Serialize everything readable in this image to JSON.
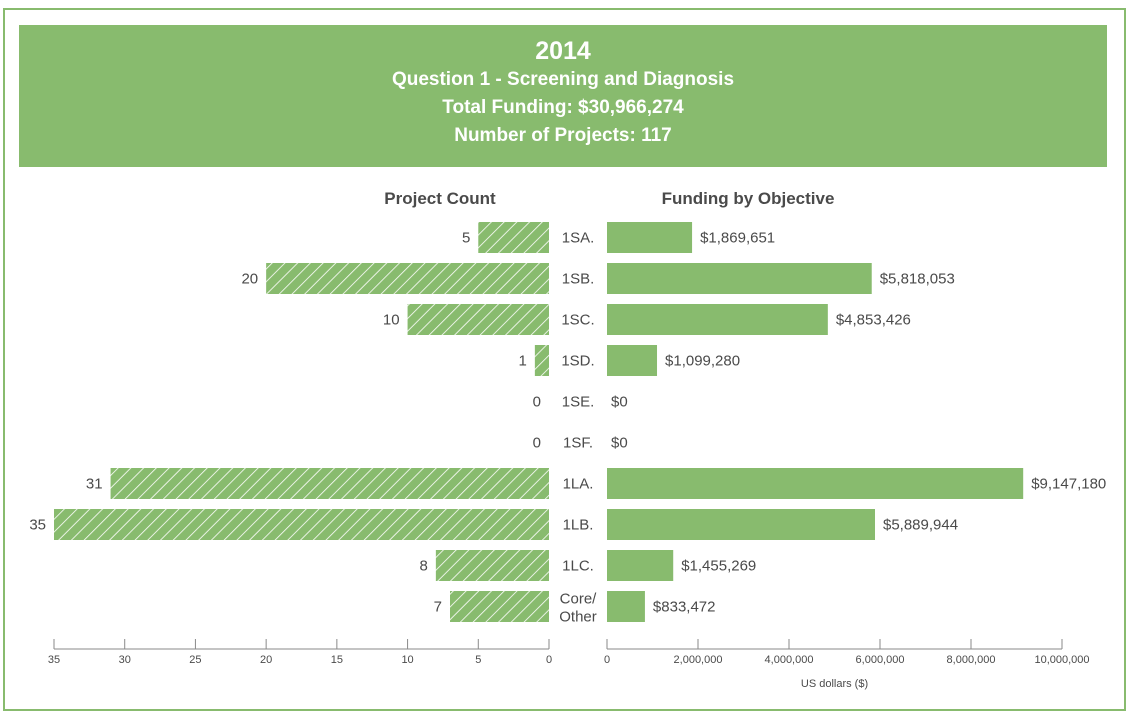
{
  "header": {
    "year": "2014",
    "question": "Question 1 - Screening and Diagnosis",
    "total_funding": "Total Funding: $30,966,274",
    "num_projects": "Number of Projects: 117"
  },
  "colors": {
    "accent": "#88bb6e",
    "text": "#4a4a4a",
    "axis": "#8a8a8a"
  },
  "chart_data": {
    "type": "bar",
    "orientation": "horizontal",
    "layout": "butterfly",
    "categories": [
      "1SA.",
      "1SB.",
      "1SC.",
      "1SD.",
      "1SE.",
      "1SF.",
      "1LA.",
      "1LB.",
      "1LC.",
      "Core/\nOther"
    ],
    "series": [
      {
        "name": "Project Count",
        "values": [
          5,
          20,
          10,
          1,
          0,
          0,
          31,
          35,
          8,
          7
        ],
        "labels": [
          "5",
          "20",
          "10",
          "1",
          "0",
          "0",
          "31",
          "35",
          "8",
          "7"
        ],
        "pattern": "hatched",
        "axis_ticks": [
          "35",
          "30",
          "25",
          "20",
          "15",
          "10",
          "5",
          "0"
        ],
        "axis_range": [
          0,
          35
        ]
      },
      {
        "name": "Funding by Objective",
        "values": [
          1869651,
          5818053,
          4853426,
          1099280,
          0,
          0,
          9147180,
          5889944,
          1455269,
          833472
        ],
        "labels": [
          "$1,869,651",
          "$5,818,053",
          "$4,853,426",
          "$1,099,280",
          "$0",
          "$0",
          "$9,147,180",
          "$5,889,944",
          "$1,455,269",
          "$833,472"
        ],
        "pattern": "solid",
        "axis_ticks": [
          "0",
          "2,000,000",
          "4,000,000",
          "6,000,000",
          "8,000,000",
          "10,000,000"
        ],
        "axis_range": [
          0,
          10000000
        ],
        "xlabel": "US dollars ($)"
      }
    ],
    "legend": "none",
    "grid": false
  }
}
